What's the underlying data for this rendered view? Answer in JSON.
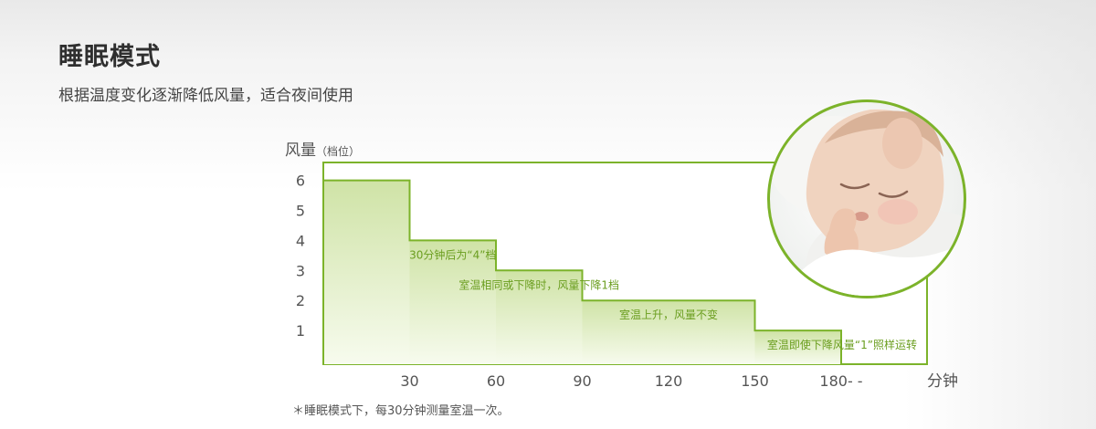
{
  "header": {
    "title": "睡眠模式",
    "subtitle": "根据温度变化逐渐降低风量，适合夜间使用"
  },
  "chart_data": {
    "type": "line",
    "ylabel": "风量",
    "ylabel_unit": "（档位）",
    "xunit": "分钟",
    "y_ticks": [
      "6",
      "5",
      "4",
      "3",
      "2",
      "1"
    ],
    "x_ticks": [
      "30",
      "60",
      "90",
      "120",
      "150",
      "180- -"
    ],
    "steps": [
      {
        "x_start": 0,
        "x_end": 30,
        "y": 6
      },
      {
        "x_start": 30,
        "x_end": 60,
        "y": 4
      },
      {
        "x_start": 60,
        "x_end": 90,
        "y": 3
      },
      {
        "x_start": 90,
        "x_end": 150,
        "y": 2
      },
      {
        "x_start": 150,
        "x_end": 180,
        "y": 1
      }
    ],
    "annotations": [
      {
        "text": "30分钟后为“4”档",
        "x": 45,
        "y": 4
      },
      {
        "text": "室温相同或下降时，风量下降1档",
        "x": 75,
        "y": 3
      },
      {
        "text": "室温上升，风量不变",
        "x": 120,
        "y": 2
      },
      {
        "text": "室温即使下降风量“1”照样运转",
        "x": 172,
        "y": 1
      }
    ],
    "ylim": [
      0,
      6.6
    ],
    "colors": {
      "line": "#7cb32a",
      "fill_top": "#cfe3a6",
      "fill_bottom": "#f7fbee",
      "text": "#6b9e20"
    }
  },
  "footnote": "＊睡眠模式下，每30分钟测量室温一次。",
  "photo": {
    "icon": "sleeping-baby-photo"
  }
}
